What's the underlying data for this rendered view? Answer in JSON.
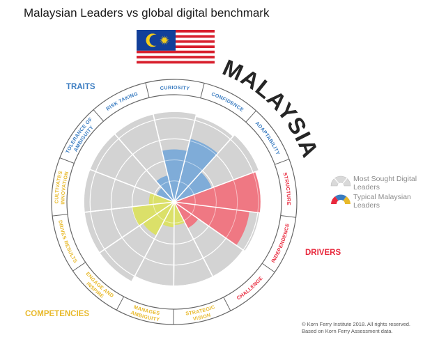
{
  "title": "Malaysian Leaders vs global digital benchmark",
  "country_label": "MALAYSIA",
  "footer": {
    "line1": "© Korn Ferry Institute 2018. All rights reserved.",
    "line2": "Based on Korn Ferry Assessment data."
  },
  "colors": {
    "traits": "#3a7cc1",
    "drivers": "#e8293d",
    "competencies": "#e8b92a",
    "benchmark": "#d3d3d3",
    "blue_fill": "#7aaad8",
    "red_fill": "#f0737e",
    "yellow_fill": "#dbe063"
  },
  "chart_data": {
    "type": "polar-area",
    "title": "Malaysian Leaders vs global digital benchmark",
    "rmax": 5,
    "grid": true,
    "legend": {
      "placement": "right",
      "entries": [
        "Most Sought Digital Leaders",
        "Typical Malaysian Leaders"
      ]
    },
    "groups": [
      {
        "name": "TRAITS",
        "color": "#3a7cc1"
      },
      {
        "name": "DRIVERS",
        "color": "#e8293d"
      },
      {
        "name": "COMPETENCIES",
        "color": "#e8b92a"
      }
    ],
    "categories": [
      "CURIOSITY",
      "CONFIDENCE",
      "ADAPTABILITY",
      "STRUCTURE",
      "INDEPENDENCE",
      "CHALLENGE",
      "STRATEGIC VISION",
      "MANAGES AMBIGUITY",
      "ENGAGE AND INSPIRE",
      "DRIVES RESULTS",
      "CULTIVATES INNOVATION",
      "TOLERANCE OF AMBIGUITY",
      "RISK TAKING"
    ],
    "category_groups": [
      "TRAITS",
      "TRAITS",
      "TRAITS",
      "DRIVERS",
      "DRIVERS",
      "DRIVERS",
      "COMPETENCIES",
      "COMPETENCIES",
      "COMPETENCIES",
      "COMPETENCIES",
      "COMPETENCIES",
      "TRAITS",
      "TRAITS"
    ],
    "series": [
      {
        "name": "Most Sought Digital Leaders",
        "values": [
          4.3,
          4.2,
          4.3,
          4.1,
          4.1,
          4.0,
          4.0,
          4.0,
          4.3,
          4.3,
          4.3,
          4.3,
          4.3
        ]
      },
      {
        "name": "Typical Malaysian Leaders",
        "values": [
          2.5,
          3.1,
          1.9,
          4.1,
          3.6,
          1.4,
          1.1,
          1.2,
          1.8,
          2.0,
          1.2,
          0.9,
          1.3
        ]
      }
    ]
  }
}
